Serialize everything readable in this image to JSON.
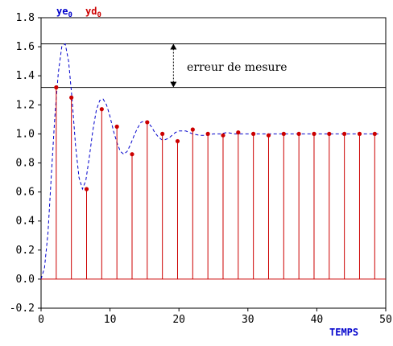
{
  "chart_data": {
    "type": "line",
    "title": "",
    "xlabel": "TEMPS",
    "ylabel": "",
    "xlim": [
      0,
      50
    ],
    "ylim": [
      -0.2,
      1.8
    ],
    "x_ticks": [
      0,
      10,
      20,
      30,
      40,
      50
    ],
    "y_ticks": [
      -0.2,
      0.0,
      0.2,
      0.4,
      0.6,
      0.8,
      1.0,
      1.2,
      1.4,
      1.6,
      1.8
    ],
    "grid": false,
    "legend": {
      "placement": "top-left",
      "entries": [
        {
          "label_main": "ye",
          "label_sub": "0",
          "color": "#0000cc",
          "style": "dashed"
        },
        {
          "label_main": "yd",
          "label_sub": "0",
          "color": "#cc0000",
          "style": "stem"
        }
      ]
    },
    "series": [
      {
        "name": "ye",
        "style": "dashed",
        "color": "#0000cc",
        "x": [
          0,
          0.5,
          1,
          1.5,
          2,
          2.5,
          3,
          3.5,
          4,
          4.5,
          5,
          5.5,
          6,
          6.5,
          7,
          7.5,
          8,
          8.5,
          9,
          9.5,
          10,
          10.5,
          11,
          11.5,
          12,
          12.5,
          13,
          13.5,
          14,
          14.5,
          15,
          15.5,
          16,
          16.5,
          17,
          17.5,
          18,
          18.5,
          19,
          19.5,
          20,
          21,
          22,
          23,
          24,
          25,
          26,
          27,
          28,
          29,
          30,
          32,
          34,
          36,
          38,
          40,
          42,
          44,
          46,
          48,
          49
        ],
        "y": [
          0.0,
          0.08,
          0.32,
          0.72,
          1.12,
          1.42,
          1.6,
          1.62,
          1.5,
          1.24,
          0.92,
          0.7,
          0.62,
          0.68,
          0.84,
          1.02,
          1.16,
          1.23,
          1.24,
          1.2,
          1.12,
          1.02,
          0.94,
          0.88,
          0.86,
          0.88,
          0.93,
          0.99,
          1.04,
          1.08,
          1.09,
          1.08,
          1.05,
          1.01,
          0.98,
          0.96,
          0.96,
          0.97,
          0.99,
          1.01,
          1.02,
          1.02,
          1.0,
          0.99,
          0.99,
          1.0,
          1.0,
          1.01,
          1.0,
          1.0,
          1.0,
          1.0,
          1.0,
          1.0,
          1.0,
          1.0,
          1.0,
          1.0,
          1.0,
          1.0,
          1.0
        ]
      },
      {
        "name": "yd",
        "style": "stem",
        "color": "#cc0000",
        "x": [
          2.2,
          4.4,
          6.6,
          8.8,
          11.0,
          13.2,
          15.4,
          17.6,
          19.8,
          22.0,
          24.2,
          26.4,
          28.6,
          30.8,
          33.0,
          35.2,
          37.4,
          39.6,
          41.8,
          44.0,
          46.2,
          48.4
        ],
        "y": [
          1.32,
          1.25,
          0.62,
          1.17,
          1.05,
          0.86,
          1.08,
          1.0,
          0.95,
          1.03,
          1.0,
          0.99,
          1.01,
          1.0,
          0.99,
          1.0,
          1.0,
          1.0,
          1.0,
          1.0,
          1.0,
          1.0
        ]
      }
    ],
    "reference_lines": [
      1.62,
      1.32
    ],
    "annotation": {
      "text": "erreur de mesure",
      "arrow_x": 19.2
    }
  }
}
